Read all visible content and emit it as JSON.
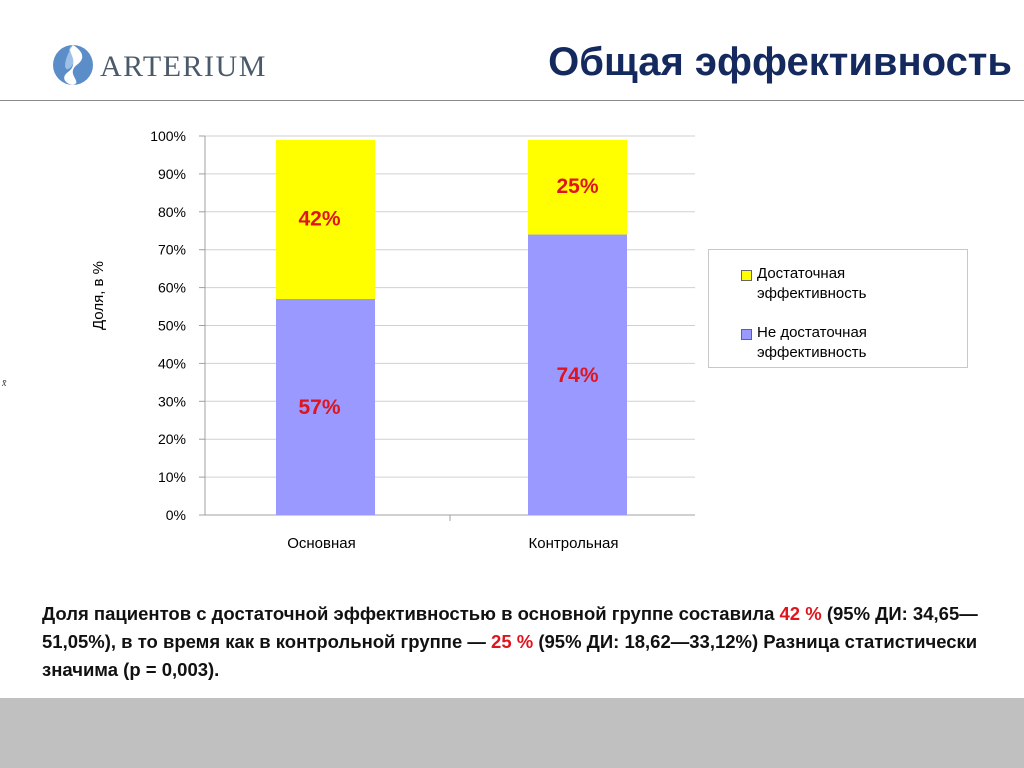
{
  "header": {
    "logo_text": "ARTERIUM",
    "title": "Общая эффективность"
  },
  "side_mark": "x̄",
  "chart_data": {
    "type": "bar",
    "stacked": true,
    "categories": [
      "Основная",
      "Контрольная"
    ],
    "series": [
      {
        "name": "Не достаточная эффективность",
        "values": [
          57,
          74
        ],
        "labels": [
          "57%",
          "74%"
        ],
        "color": "#9999ff"
      },
      {
        "name": "Достаточная эффективность",
        "values": [
          42,
          25
        ],
        "labels": [
          "42%",
          "25%"
        ],
        "color": "#ffff00"
      }
    ],
    "ylabel": "Доля, в %",
    "ylim": [
      0,
      100
    ],
    "yticks": [
      "0%",
      "10%",
      "20%",
      "30%",
      "40%",
      "50%",
      "60%",
      "70%",
      "80%",
      "90%",
      "100%"
    ],
    "grid": true,
    "legend_position": "right",
    "data_label_color": "#e0141c"
  },
  "legend": {
    "items": [
      {
        "label_line1": "Достаточная",
        "label_line2": "эффективность",
        "color": "#ffff00"
      },
      {
        "label_line1": "Не достаточная",
        "label_line2": "эффективность",
        "color": "#9999ff"
      }
    ]
  },
  "summary": {
    "part1": "Доля пациентов с достаточной эффективностью в основной группе составила ",
    "value1": "42 %",
    "part2": " (95% ДИ: 34,65—51,05%), в то время как в контрольной группе — ",
    "value2": "25 %",
    "part3": " (95% ДИ: 18,62—33,12%)  Разница  статистически  значима  (p = 0,003)."
  }
}
